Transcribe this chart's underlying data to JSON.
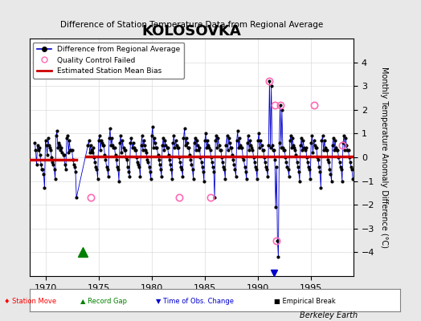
{
  "title": "KOLOSOVKA",
  "subtitle": "Difference of Station Temperature Data from Regional Average",
  "ylabel": "Monthly Temperature Anomaly Difference (°C)",
  "xlabel_bottom": "Berkeley Earth",
  "ylim": [
    -5,
    5
  ],
  "xlim": [
    1968.5,
    1999.0
  ],
  "xticks": [
    1970,
    1975,
    1980,
    1985,
    1990,
    1995
  ],
  "yticks": [
    -4,
    -3,
    -2,
    -1,
    0,
    1,
    2,
    3,
    4
  ],
  "background_color": "#e8e8e8",
  "plot_bg_color": "#ffffff",
  "line_color": "#0000cc",
  "dot_color": "#000000",
  "bias_color": "#cc0000",
  "qc_color": "#ff69b4",
  "record_gap_x": 1973.5,
  "record_gap_y": -4.0,
  "time_obs_x": 1991.5,
  "bias_segments": [
    {
      "x": [
        1968.5,
        1972.9
      ],
      "y": [
        -0.1,
        -0.1
      ]
    },
    {
      "x": [
        1973.8,
        1999.0
      ],
      "y": [
        0.05,
        0.05
      ]
    }
  ],
  "data_x": [
    1969.0,
    1969.083,
    1969.167,
    1969.25,
    1969.333,
    1969.417,
    1969.5,
    1969.583,
    1969.667,
    1969.75,
    1969.833,
    1969.917,
    1970.0,
    1970.083,
    1970.167,
    1970.25,
    1970.333,
    1970.417,
    1970.5,
    1970.583,
    1970.667,
    1970.75,
    1970.833,
    1970.917,
    1971.0,
    1971.083,
    1971.167,
    1971.25,
    1971.333,
    1971.417,
    1971.5,
    1971.583,
    1971.667,
    1971.75,
    1971.833,
    1971.917,
    1972.0,
    1972.083,
    1972.167,
    1972.25,
    1972.333,
    1972.417,
    1972.5,
    1972.583,
    1972.667,
    1972.75,
    1972.833,
    1972.917,
    1974.0,
    1974.083,
    1974.167,
    1974.25,
    1974.333,
    1974.417,
    1974.5,
    1974.583,
    1974.667,
    1974.75,
    1974.833,
    1974.917,
    1975.0,
    1975.083,
    1975.167,
    1975.25,
    1975.333,
    1975.417,
    1975.5,
    1975.583,
    1975.667,
    1975.75,
    1975.833,
    1975.917,
    1976.0,
    1976.083,
    1976.167,
    1976.25,
    1976.333,
    1976.417,
    1976.5,
    1976.583,
    1976.667,
    1976.75,
    1976.833,
    1976.917,
    1977.0,
    1977.083,
    1977.167,
    1977.25,
    1977.333,
    1977.417,
    1977.5,
    1977.583,
    1977.667,
    1977.75,
    1977.833,
    1977.917,
    1978.0,
    1978.083,
    1978.167,
    1978.25,
    1978.333,
    1978.417,
    1978.5,
    1978.583,
    1978.667,
    1978.75,
    1978.833,
    1978.917,
    1979.0,
    1979.083,
    1979.167,
    1979.25,
    1979.333,
    1979.417,
    1979.5,
    1979.583,
    1979.667,
    1979.75,
    1979.833,
    1979.917,
    1980.0,
    1980.083,
    1980.167,
    1980.25,
    1980.333,
    1980.417,
    1980.5,
    1980.583,
    1980.667,
    1980.75,
    1980.833,
    1980.917,
    1981.0,
    1981.083,
    1981.167,
    1981.25,
    1981.333,
    1981.417,
    1981.5,
    1981.583,
    1981.667,
    1981.75,
    1981.833,
    1981.917,
    1982.0,
    1982.083,
    1982.167,
    1982.25,
    1982.333,
    1982.417,
    1982.5,
    1982.583,
    1982.667,
    1982.75,
    1982.833,
    1982.917,
    1983.0,
    1983.083,
    1983.167,
    1983.25,
    1983.333,
    1983.417,
    1983.5,
    1983.583,
    1983.667,
    1983.75,
    1983.833,
    1983.917,
    1984.0,
    1984.083,
    1984.167,
    1984.25,
    1984.333,
    1984.417,
    1984.5,
    1984.583,
    1984.667,
    1984.75,
    1984.833,
    1984.917,
    1985.0,
    1985.083,
    1985.167,
    1985.25,
    1985.333,
    1985.417,
    1985.5,
    1985.583,
    1985.667,
    1985.75,
    1985.833,
    1985.917,
    1986.0,
    1986.083,
    1986.167,
    1986.25,
    1986.333,
    1986.417,
    1986.5,
    1986.583,
    1986.667,
    1986.75,
    1986.833,
    1986.917,
    1987.0,
    1987.083,
    1987.167,
    1987.25,
    1987.333,
    1987.417,
    1987.5,
    1987.583,
    1987.667,
    1987.75,
    1987.833,
    1987.917,
    1988.0,
    1988.083,
    1988.167,
    1988.25,
    1988.333,
    1988.417,
    1988.5,
    1988.583,
    1988.667,
    1988.75,
    1988.833,
    1988.917,
    1989.0,
    1989.083,
    1989.167,
    1989.25,
    1989.333,
    1989.417,
    1989.5,
    1989.583,
    1989.667,
    1989.75,
    1989.833,
    1989.917,
    1990.0,
    1990.083,
    1990.167,
    1990.25,
    1990.333,
    1990.417,
    1990.5,
    1990.583,
    1990.667,
    1990.75,
    1990.833,
    1990.917,
    1991.0,
    1991.083,
    1991.167,
    1991.25,
    1991.333,
    1991.417,
    1991.5,
    1991.583,
    1991.667,
    1991.75,
    1991.833,
    1991.917,
    1992.0,
    1992.083,
    1992.167,
    1992.25,
    1992.333,
    1992.417,
    1992.5,
    1992.583,
    1992.667,
    1992.75,
    1992.833,
    1992.917,
    1993.0,
    1993.083,
    1993.167,
    1993.25,
    1993.333,
    1993.417,
    1993.5,
    1993.583,
    1993.667,
    1993.75,
    1993.833,
    1993.917,
    1994.0,
    1994.083,
    1994.167,
    1994.25,
    1994.333,
    1994.417,
    1994.5,
    1994.583,
    1994.667,
    1994.75,
    1994.833,
    1994.917,
    1995.0,
    1995.083,
    1995.167,
    1995.25,
    1995.333,
    1995.417,
    1995.5,
    1995.583,
    1995.667,
    1995.75,
    1995.833,
    1995.917,
    1996.0,
    1996.083,
    1996.167,
    1996.25,
    1996.333,
    1996.417,
    1996.5,
    1996.583,
    1996.667,
    1996.75,
    1996.833,
    1996.917,
    1997.0,
    1997.083,
    1997.167,
    1997.25,
    1997.333,
    1997.417,
    1997.5,
    1997.583,
    1997.667,
    1997.75,
    1997.833,
    1997.917,
    1998.0,
    1998.083,
    1998.167,
    1998.25,
    1998.333,
    1998.417,
    1998.5,
    1998.583,
    1998.667,
    1998.75,
    1998.833,
    1998.917
  ],
  "data_y": [
    0.6,
    0.3,
    -0.3,
    0.5,
    0.3,
    0.4,
    0.1,
    -0.3,
    -0.5,
    -0.5,
    -0.7,
    -1.3,
    0.7,
    0.5,
    0.1,
    0.8,
    0.5,
    0.4,
    0.3,
    0.0,
    -0.2,
    -0.3,
    -0.5,
    -0.9,
    0.9,
    1.1,
    0.4,
    0.6,
    0.5,
    0.3,
    0.4,
    0.2,
    0.1,
    0.1,
    -0.3,
    -0.5,
    0.8,
    0.9,
    0.2,
    0.7,
    0.3,
    0.3,
    0.3,
    -0.1,
    -0.3,
    -0.4,
    -0.6,
    -1.7,
    0.5,
    0.7,
    0.2,
    0.5,
    0.3,
    0.2,
    0.4,
    -0.0,
    -0.2,
    -0.4,
    -0.5,
    -0.9,
    0.7,
    0.9,
    0.3,
    0.7,
    0.6,
    0.5,
    0.5,
    0.1,
    -0.1,
    -0.4,
    -0.5,
    -0.8,
    0.8,
    1.2,
    0.5,
    0.8,
    0.5,
    0.4,
    0.4,
    0.1,
    -0.1,
    -0.4,
    -0.5,
    -1.0,
    0.6,
    0.9,
    0.2,
    0.7,
    0.4,
    0.3,
    0.3,
    -0.0,
    -0.1,
    -0.4,
    -0.6,
    -0.8,
    0.6,
    0.8,
    0.4,
    0.6,
    0.4,
    0.3,
    0.3,
    0.0,
    -0.2,
    -0.3,
    -0.4,
    -0.8,
    0.5,
    0.9,
    0.3,
    0.7,
    0.5,
    0.3,
    0.2,
    -0.1,
    -0.2,
    -0.4,
    -0.6,
    -0.9,
    0.9,
    1.3,
    0.4,
    0.8,
    0.6,
    0.4,
    0.4,
    0.1,
    -0.1,
    -0.3,
    -0.5,
    -0.8,
    0.5,
    0.8,
    0.3,
    0.7,
    0.5,
    0.4,
    0.4,
    0.1,
    -0.1,
    -0.3,
    -0.5,
    -0.9,
    0.6,
    0.9,
    0.4,
    0.7,
    0.5,
    0.4,
    0.4,
    0.0,
    -0.2,
    -0.4,
    -0.5,
    -0.8,
    0.8,
    1.2,
    0.5,
    0.8,
    0.6,
    0.4,
    0.4,
    0.1,
    -0.1,
    -0.3,
    -0.5,
    -0.9,
    0.6,
    0.8,
    0.3,
    0.7,
    0.5,
    0.3,
    0.4,
    -0.0,
    -0.2,
    -0.4,
    -0.6,
    -1.0,
    0.7,
    1.0,
    0.4,
    0.7,
    0.5,
    0.4,
    0.3,
    0.0,
    -0.2,
    -0.4,
    -0.6,
    -1.7,
    0.7,
    0.9,
    0.4,
    0.8,
    0.5,
    0.3,
    0.3,
    -0.0,
    -0.2,
    -0.4,
    -0.5,
    -0.9,
    0.5,
    0.9,
    0.3,
    0.8,
    0.6,
    0.4,
    0.4,
    0.1,
    -0.1,
    -0.3,
    -0.5,
    -0.8,
    0.7,
    1.1,
    0.4,
    0.8,
    0.5,
    0.4,
    0.4,
    0.0,
    -0.1,
    -0.4,
    -0.6,
    -0.9,
    0.6,
    0.9,
    0.3,
    0.7,
    0.5,
    0.4,
    0.3,
    0.0,
    -0.2,
    -0.4,
    -0.5,
    -0.9,
    0.7,
    1.0,
    0.4,
    0.7,
    0.5,
    0.3,
    0.3,
    -0.0,
    -0.2,
    -0.4,
    -0.5,
    -0.8,
    0.5,
    3.2,
    0.4,
    3.0,
    0.5,
    0.3,
    0.3,
    -0.1,
    -2.1,
    -0.4,
    -3.5,
    -4.2,
    0.6,
    2.2,
    0.4,
    2.0,
    0.4,
    0.3,
    0.3,
    0.0,
    -0.2,
    -0.4,
    -0.5,
    -0.8,
    0.7,
    0.9,
    0.4,
    0.8,
    0.5,
    0.4,
    0.3,
    0.1,
    -0.2,
    -0.4,
    -0.6,
    -1.0,
    0.5,
    0.8,
    0.3,
    0.7,
    0.4,
    0.3,
    0.4,
    -0.0,
    -0.2,
    -0.4,
    -0.5,
    -0.9,
    0.6,
    0.9,
    0.2,
    0.7,
    0.5,
    0.4,
    0.4,
    0.0,
    -0.1,
    -0.4,
    -0.6,
    -1.3,
    0.7,
    0.9,
    0.3,
    0.7,
    0.4,
    0.3,
    0.3,
    -0.1,
    -0.2,
    -0.5,
    -0.7,
    -1.0,
    0.5,
    0.8,
    0.3,
    0.7,
    0.4,
    0.3,
    0.3,
    0.0,
    -0.2,
    -0.4,
    -0.5,
    -1.0,
    0.6,
    0.9,
    0.3,
    0.8,
    0.5,
    0.3,
    0.3,
    0.0,
    -0.2,
    -0.4,
    -0.5,
    -0.9
  ],
  "qc_points_x": [
    1974.25,
    1982.583,
    1985.5,
    1991.083,
    1991.583,
    1991.75,
    1992.083,
    1995.25,
    1997.917
  ],
  "qc_points_y": [
    -1.7,
    -1.7,
    -1.7,
    3.2,
    2.2,
    -3.5,
    2.2,
    2.2,
    0.5
  ]
}
